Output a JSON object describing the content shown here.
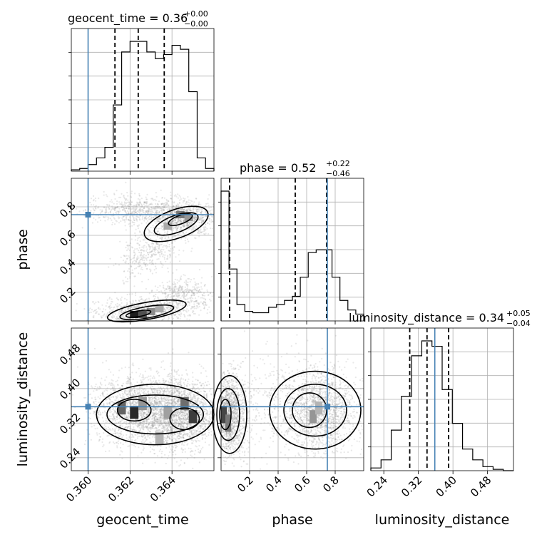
{
  "figure": {
    "titles": [
      {
        "main": "geocent_time = 0.36",
        "sup": "+0.00",
        "sub": "−0.00"
      },
      {
        "main": "phase = 0.52",
        "sup": "+0.22",
        "sub": "−0.46"
      },
      {
        "main": "luminosity_distance = 0.34",
        "sup": "+0.05",
        "sub": "−0.04"
      }
    ],
    "xlabels": [
      "geocent_time",
      "phase",
      "luminosity_distance"
    ],
    "ylabels": [
      "phase",
      "luminosity_distance"
    ],
    "colors": {
      "truth": "#4682b4",
      "hist": "#000000",
      "scatter": "#7f7f7f"
    }
  },
  "chart_data": {
    "type": "corner",
    "parameters": [
      "geocent_time",
      "phase",
      "luminosity_distance"
    ],
    "ranges": [
      [
        0.3592,
        0.366
      ],
      [
        0.0,
        1.0
      ],
      [
        0.21,
        0.54
      ]
    ],
    "truths": [
      0.36,
      0.745,
      0.358
    ],
    "ticks": {
      "geocent_time": [
        0.36,
        0.362,
        0.364
      ],
      "phase": [
        0.2,
        0.4,
        0.6,
        0.8
      ],
      "luminosity_distance": [
        0.24,
        0.32,
        0.4,
        0.48
      ]
    },
    "tick_labels": {
      "geocent_time": [
        "0.360",
        "0.362",
        "0.364"
      ],
      "phase": [
        "0.2",
        "0.4",
        "0.6",
        "0.8"
      ],
      "luminosity_distance": [
        "0.24",
        "0.32",
        "0.40",
        "0.48"
      ]
    },
    "quantiles": {
      "geocent_time": [
        0.36128,
        0.36239,
        0.36363
      ],
      "phase": [
        0.06,
        0.52,
        0.74
      ],
      "luminosity_distance": [
        0.3,
        0.34,
        0.39
      ]
    },
    "histograms": {
      "geocent_time": [
        1,
        2,
        5,
        10,
        18,
        50,
        90,
        98,
        98,
        90,
        85,
        88,
        95,
        92,
        60,
        10,
        2
      ],
      "phase": [
        95,
        38,
        12,
        7,
        6,
        6,
        10,
        12,
        15,
        18,
        32,
        50,
        52,
        52,
        32,
        15,
        8,
        5
      ],
      "luminosity_distance": [
        2,
        8,
        30,
        55,
        85,
        96,
        92,
        60,
        35,
        16,
        8,
        3,
        1,
        0
      ]
    },
    "grid": true
  }
}
